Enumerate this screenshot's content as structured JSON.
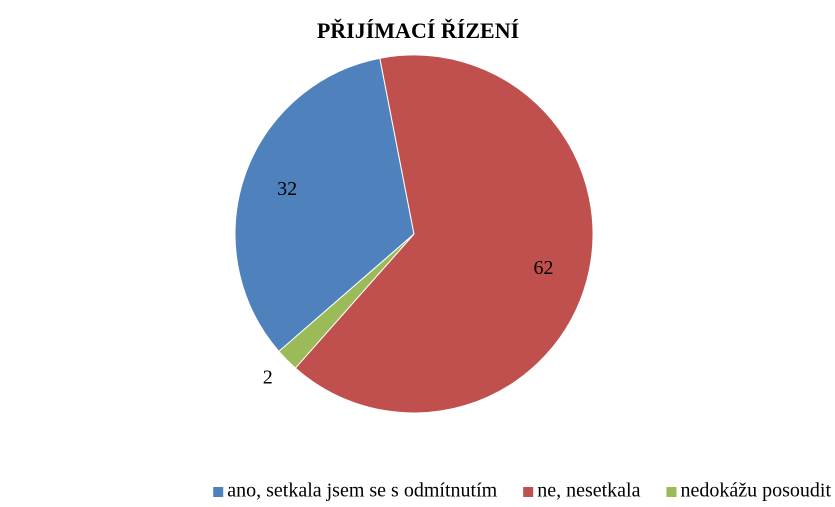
{
  "chart_data": {
    "type": "pie",
    "title": "PŘIJÍMACÍ ŘÍZENÍ",
    "categories": [
      "ano, setkala jsem se s odmítnutím",
      "ne, nesetkala",
      "nedokážu posoudit"
    ],
    "values": [
      32,
      62,
      2
    ],
    "colors": [
      "#4f81bd",
      "#c0504d",
      "#9bbb59"
    ],
    "legend": "bottom"
  }
}
